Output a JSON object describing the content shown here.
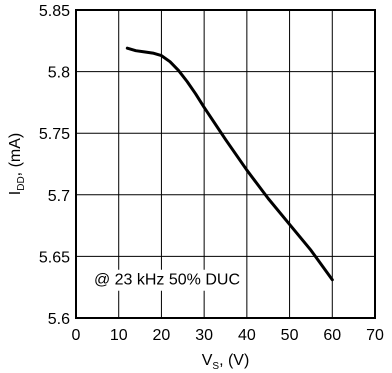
{
  "chart_data": {
    "type": "line",
    "title": "",
    "xlabel": "V",
    "xlabel_sub": "S",
    "xlabel_unit": ", (V)",
    "ylabel": "I",
    "ylabel_sub": "DD",
    "ylabel_unit": ", (mA)",
    "xlim": [
      0,
      70
    ],
    "ylim": [
      5.6,
      5.85
    ],
    "xticks": [
      "0",
      "10",
      "20",
      "30",
      "40",
      "50",
      "60",
      "70"
    ],
    "yticks": [
      "5.6",
      "5.65",
      "5.7",
      "5.75",
      "5.8",
      "5.85"
    ],
    "grid": true,
    "annotation": "@ 23 kHz 50% DUC",
    "series": [
      {
        "x": [
          12,
          14,
          16,
          18,
          20,
          22,
          24,
          26,
          28,
          30,
          35,
          40,
          45,
          50,
          55,
          60
        ],
        "y": [
          5.819,
          5.817,
          5.816,
          5.815,
          5.813,
          5.808,
          5.801,
          5.792,
          5.782,
          5.771,
          5.745,
          5.72,
          5.697,
          5.676,
          5.655,
          5.631
        ]
      }
    ]
  }
}
